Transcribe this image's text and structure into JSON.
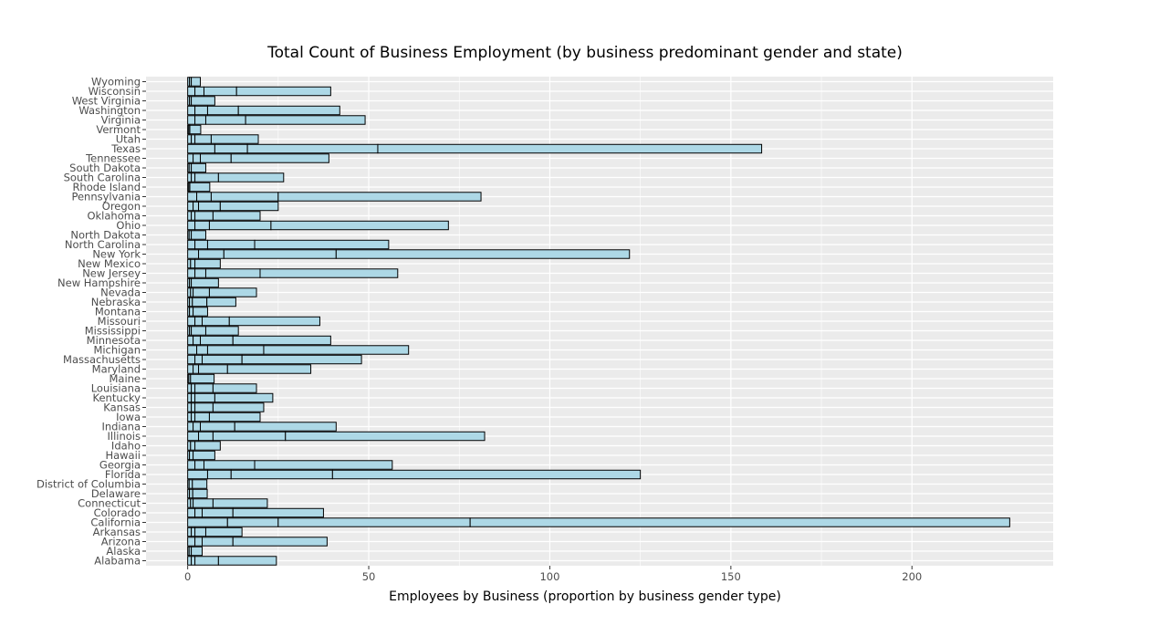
{
  "chart_data": {
    "type": "bar",
    "orientation": "horizontal",
    "stacked": true,
    "title": "Total Count of Business Employment (by business predominant gender and state)",
    "xlabel": "Employees by Business (proportion by business gender type)",
    "ylabel": "",
    "xlim": [
      -11.5,
      239
    ],
    "x_ticks": [
      0,
      50,
      100,
      150,
      200
    ],
    "grid": true,
    "legend": "none",
    "colors": {
      "bar_fill": "#add8e6",
      "bar_edge": "#000000",
      "panel": "#ebebeb",
      "grid": "#ffffff",
      "text": "#000000",
      "tick_text": "#4d4d4d"
    },
    "categories": [
      "Alabama",
      "Alaska",
      "Arizona",
      "Arkansas",
      "California",
      "Colorado",
      "Connecticut",
      "Delaware",
      "District of Columbia",
      "Florida",
      "Georgia",
      "Hawaii",
      "Idaho",
      "Illinois",
      "Indiana",
      "Iowa",
      "Kansas",
      "Kentucky",
      "Louisiana",
      "Maine",
      "Maryland",
      "Massachusetts",
      "Michigan",
      "Minnesota",
      "Mississippi",
      "Missouri",
      "Montana",
      "Nebraska",
      "Nevada",
      "New Hampshire",
      "New Jersey",
      "New Mexico",
      "New York",
      "North Carolina",
      "North Dakota",
      "Ohio",
      "Oklahoma",
      "Oregon",
      "Pennsylvania",
      "Rhode Island",
      "South Carolina",
      "South Dakota",
      "Tennessee",
      "Texas",
      "Utah",
      "Vermont",
      "Virginia",
      "Washington",
      "West Virginia",
      "Wisconsin",
      "Wyoming"
    ],
    "series": [
      {
        "values": [
          1,
          0.4,
          2,
          1,
          11,
          2,
          0.8,
          0.5,
          0.4,
          5.5,
          2,
          0.5,
          0.8,
          3,
          1.5,
          1,
          1,
          1,
          1,
          0.3,
          1.5,
          2,
          2.5,
          1.5,
          0.5,
          2,
          0.5,
          0.5,
          0.8,
          0.5,
          2,
          0.8,
          3,
          2,
          0.4,
          2,
          1,
          1.5,
          2.5,
          0.3,
          1,
          0.4,
          1.5,
          7.5,
          1,
          0.3,
          2,
          2,
          0.5,
          2,
          0.5
        ]
      },
      {
        "values": [
          1,
          0.6,
          2,
          1,
          14,
          2,
          0.7,
          0.9,
          0.9,
          6.5,
          2.5,
          1,
          1.2,
          4,
          2,
          1,
          1,
          1,
          1,
          0.5,
          1.5,
          2,
          3,
          2,
          0.5,
          2,
          1,
          0.8,
          0.7,
          0.5,
          3,
          1.2,
          7,
          3.5,
          0.6,
          4,
          1,
          1.5,
          4,
          0.3,
          1,
          0.6,
          2,
          9,
          1,
          0.3,
          3,
          3.5,
          0.5,
          2.5,
          0.5
        ]
      },
      {
        "values": [
          6.5,
          3,
          8.5,
          3,
          53,
          8.5,
          5.5,
          4,
          4,
          28,
          14,
          6,
          7,
          20,
          9.5,
          4,
          5,
          5.5,
          5,
          6.5,
          8,
          11,
          15.5,
          9,
          4,
          7.5,
          4,
          4,
          4.5,
          7.5,
          15,
          7,
          31,
          13,
          4,
          17,
          5,
          6,
          18.5,
          5.5,
          6.5,
          4,
          8.5,
          36,
          4.5,
          3,
          11,
          8.5,
          6.5,
          9,
          2.5
        ]
      },
      {
        "values": [
          16,
          0,
          26,
          10,
          149,
          25,
          15,
          0,
          0,
          85,
          38,
          0,
          0,
          55,
          28,
          14,
          14,
          16,
          12,
          0,
          23,
          33,
          40,
          27,
          9,
          25,
          0,
          8,
          13,
          0,
          38,
          0,
          81,
          37,
          0,
          49,
          13,
          16,
          56,
          0,
          18,
          0,
          27,
          106,
          13,
          0,
          33,
          28,
          0,
          26,
          0
        ]
      }
    ]
  }
}
